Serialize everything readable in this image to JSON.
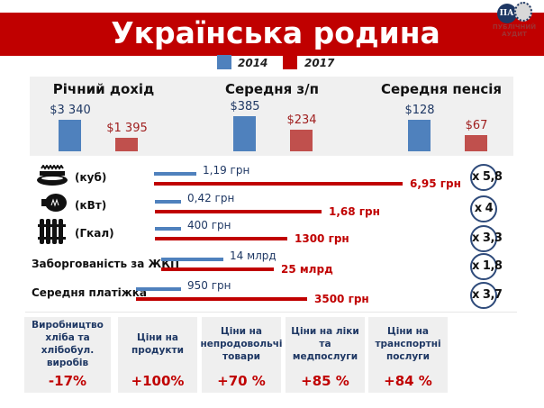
{
  "header": {
    "title": "Українська родина",
    "logo": {
      "initials": "ПА",
      "text_line1": "ПУБЛІЧНИЙ",
      "text_line2": "АУДИТ"
    }
  },
  "legend": [
    {
      "label": "2014",
      "color": "#4f81bd"
    },
    {
      "label": "2017",
      "color": "#c0504d"
    }
  ],
  "chart_data": {
    "type": "bar",
    "categories": [
      "Річний дохід",
      "Середня з/п",
      "Середня пенсія"
    ],
    "series": [
      {
        "name": "2014",
        "values": [
          3340,
          385,
          128
        ],
        "labels": [
          "$3 340",
          "$385",
          "$128"
        ]
      },
      {
        "name": "2017",
        "values": [
          1395,
          234,
          67
        ],
        "labels": [
          "$1 395",
          "$234",
          "$67"
        ]
      }
    ]
  },
  "comparisons": [
    {
      "icon": "gas-burner-icon",
      "label": "(куб)",
      "v2014": "1,19 грн",
      "v2017": "6,95 грн",
      "factor": "x 5,8"
    },
    {
      "icon": "light-bulb-icon",
      "label": "(кВт)",
      "v2014": "0,42 грн",
      "v2017": "1,68 грн",
      "factor": "x 4"
    },
    {
      "icon": "radiator-icon",
      "label": "(Гкал)",
      "v2014": "400 грн",
      "v2017": "1300 грн",
      "factor": "x 3,3"
    },
    {
      "label": "Заборгованість за ЖКП",
      "v2014": "14 млрд",
      "v2017": "25 млрд",
      "factor": "x 1,8"
    },
    {
      "label": "Середня платіжка",
      "v2014": "950 грн",
      "v2017": "3500 грн",
      "factor": "x 3,7"
    }
  ],
  "boxes": [
    {
      "title": "Виробництво хліба та хлібобул. виробів",
      "value": "-17%"
    },
    {
      "title": "Ціни на продукти",
      "value": "+100%"
    },
    {
      "title": "Ціни на непродовольчі товари",
      "value": "+70 %"
    },
    {
      "title": "Ціни на ліки та медпослуги",
      "value": "+85 %"
    },
    {
      "title": "Ціни на транспортні послуги",
      "value": "+84 %"
    }
  ]
}
